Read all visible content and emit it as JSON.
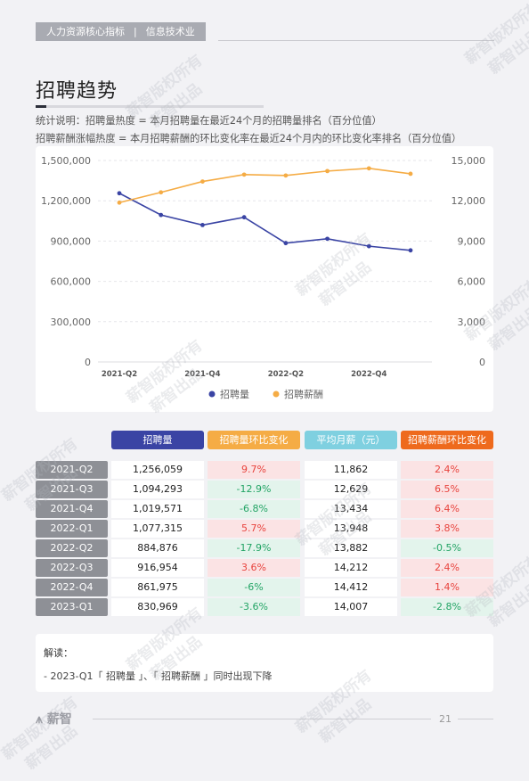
{
  "header": {
    "section": "人力资源核心指标",
    "divider": "|",
    "industry": "信息技术业"
  },
  "page_title": "招聘趋势",
  "notes": [
    "统计说明：招聘量热度 = 本月招聘量在最近24个月的招聘量排名（百分位值）",
    "招聘薪酬涨幅热度 = 本月招聘薪酬的环比变化率在最近24个月内的环比变化率排名（百分位值）"
  ],
  "chart_data": {
    "type": "line",
    "x": [
      "2021-Q2",
      "2021-Q3",
      "2021-Q4",
      "2022-Q1",
      "2022-Q2",
      "2022-Q3",
      "2022-Q4",
      "2023-Q1"
    ],
    "x_tick_labels": [
      "2021-Q2",
      "",
      "2021-Q4",
      "",
      "2022-Q2",
      "",
      "2022-Q4",
      ""
    ],
    "y_left_ticks": [
      "1,500,000",
      "1,200,000",
      "900,000",
      "600,000",
      "300,000",
      "0"
    ],
    "y_right_ticks": [
      "15,000",
      "12,000",
      "9,000",
      "6,000",
      "3,000",
      "0"
    ],
    "y_left_lim": [
      0,
      1500000
    ],
    "y_right_lim": [
      0,
      15000
    ],
    "grid": true,
    "legend_position": "bottom",
    "series": [
      {
        "name": "招聘量",
        "axis": "left",
        "color": "#3a44a4",
        "values": [
          1256059,
          1094293,
          1019571,
          1077315,
          884876,
          916954,
          861975,
          830969
        ]
      },
      {
        "name": "招聘薪酬",
        "axis": "right",
        "color": "#f5ac45",
        "values": [
          11862,
          12629,
          13434,
          13948,
          13882,
          14212,
          14412,
          14007
        ]
      }
    ]
  },
  "table": {
    "headers": [
      "招聘量",
      "招聘量环比变化",
      "平均月薪（元）",
      "招聘薪酬环比变化"
    ],
    "header_colors": [
      "#3a44a4",
      "#f5ac45",
      "#7fd0e0",
      "#ee6a1d"
    ],
    "rows": [
      {
        "period": "2021-Q2",
        "volume": "1,256,059",
        "volume_change": "9.7%",
        "salary": "11,862",
        "salary_change": "2.4%",
        "vc_sign": "pos",
        "sc_sign": "pos"
      },
      {
        "period": "2021-Q3",
        "volume": "1,094,293",
        "volume_change": "-12.9%",
        "salary": "12,629",
        "salary_change": "6.5%",
        "vc_sign": "neg",
        "sc_sign": "pos"
      },
      {
        "period": "2021-Q4",
        "volume": "1,019,571",
        "volume_change": "-6.8%",
        "salary": "13,434",
        "salary_change": "6.4%",
        "vc_sign": "neg",
        "sc_sign": "pos"
      },
      {
        "period": "2022-Q1",
        "volume": "1,077,315",
        "volume_change": "5.7%",
        "salary": "13,948",
        "salary_change": "3.8%",
        "vc_sign": "pos",
        "sc_sign": "pos"
      },
      {
        "period": "2022-Q2",
        "volume": "884,876",
        "volume_change": "-17.9%",
        "salary": "13,882",
        "salary_change": "-0.5%",
        "vc_sign": "neg",
        "sc_sign": "neg"
      },
      {
        "period": "2022-Q3",
        "volume": "916,954",
        "volume_change": "3.6%",
        "salary": "14,212",
        "salary_change": "2.4%",
        "vc_sign": "pos",
        "sc_sign": "pos"
      },
      {
        "period": "2022-Q4",
        "volume": "861,975",
        "volume_change": "-6%",
        "salary": "14,412",
        "salary_change": "1.4%",
        "vc_sign": "neg",
        "sc_sign": "pos"
      },
      {
        "period": "2023-Q1",
        "volume": "830,969",
        "volume_change": "-3.6%",
        "salary": "14,007",
        "salary_change": "-2.8%",
        "vc_sign": "neg",
        "sc_sign": "neg"
      }
    ]
  },
  "interpretation": {
    "title": "解读：",
    "items": [
      "- 2023-Q1「 招聘量 」、「 招聘薪酬 」同时出现下降"
    ]
  },
  "footer": {
    "logo": "薪智",
    "page_number": "21"
  },
  "watermark": {
    "line1": "薪智版权所有",
    "line2": "薪智出品"
  }
}
